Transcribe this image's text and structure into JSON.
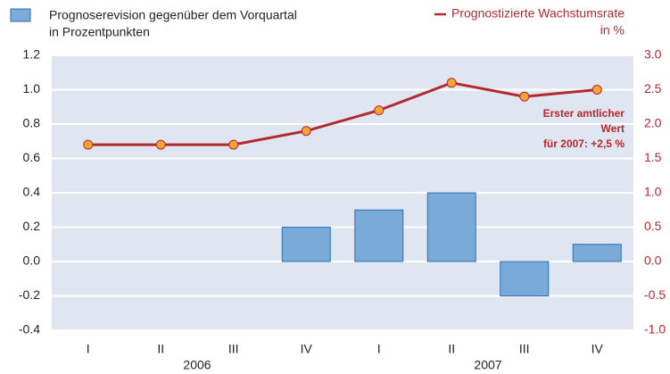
{
  "chart_data": {
    "type": "bar-line",
    "categories": [
      "I",
      "II",
      "III",
      "IV",
      "I",
      "II",
      "III",
      "IV"
    ],
    "groups": [
      "2006",
      "2007"
    ],
    "series": [
      {
        "name": [
          "Prognoserevision gegenüber dem Vorquartal",
          "in Prozentpunkten"
        ],
        "type": "bar",
        "color": "#7aaad8",
        "values": [
          0,
          0,
          0,
          0.2,
          0.3,
          0.4,
          -0.2,
          0.1
        ]
      },
      {
        "name": [
          "Prognostizierte Wachstumsrate",
          "in %"
        ],
        "type": "line",
        "axis": "y2",
        "color": "#b22a2e",
        "marker_color": "#f7a334",
        "values": [
          1.7,
          1.7,
          1.7,
          1.9,
          2.2,
          2.6,
          2.4,
          2.5
        ]
      }
    ],
    "ylim": [
      -0.4,
      1.2
    ],
    "yticks": [
      -0.4,
      -0.2,
      {
        "value": 0,
        "label": "0.0"
      },
      0.2,
      0.4,
      0.6,
      0.8,
      {
        "value": 1,
        "label": "1.0"
      },
      1.2
    ],
    "y2lim": [
      -1,
      3
    ],
    "y2ticks": [
      {
        "value": -1,
        "label": "-1.0"
      },
      -0.5,
      {
        "value": 0,
        "label": "0.0"
      },
      0.5,
      {
        "value": 1,
        "label": "1.0"
      },
      1.5,
      {
        "value": 2,
        "label": "2.0"
      },
      2.5,
      {
        "value": 3,
        "label": "3.0"
      }
    ],
    "annotation": [
      "Erster amtlicher",
      "Wert",
      "für 2007: +2,5 %"
    ],
    "grid": true
  }
}
